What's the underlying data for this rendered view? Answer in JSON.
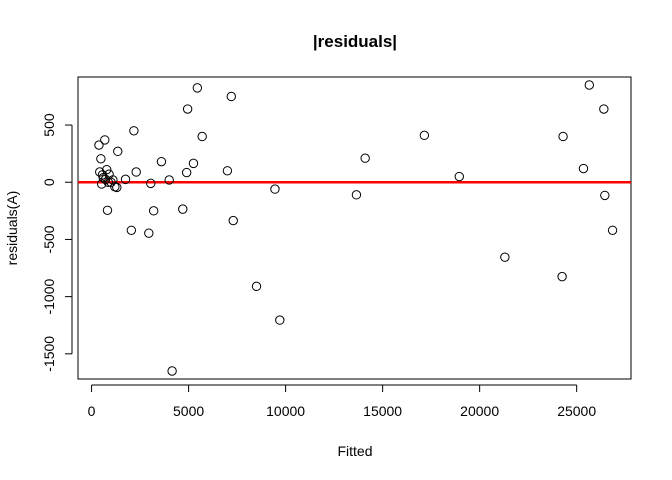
{
  "chart_data": {
    "type": "scatter",
    "title": "|residuals|",
    "xlabel": "Fitted",
    "ylabel": "residuals(A)",
    "xlim": [
      -700,
      27800
    ],
    "ylim": [
      -1720,
      920
    ],
    "xticks": [
      0,
      5000,
      10000,
      15000,
      20000,
      25000
    ],
    "yticks": [
      -1500,
      -1000,
      -500,
      0,
      500
    ],
    "xtick_labels": [
      "0",
      "5000",
      "10000",
      "15000",
      "20000",
      "25000"
    ],
    "ytick_labels": [
      "-1500",
      "-1000",
      "-500",
      "0",
      "500"
    ],
    "reference_line": {
      "y": 0,
      "color": "#ff0000"
    },
    "marker_color": "#000000",
    "grid": false,
    "points": [
      {
        "x": 380,
        "y": 325
      },
      {
        "x": 420,
        "y": 90
      },
      {
        "x": 480,
        "y": 205
      },
      {
        "x": 520,
        "y": -15
      },
      {
        "x": 560,
        "y": 65
      },
      {
        "x": 600,
        "y": 40
      },
      {
        "x": 680,
        "y": 370
      },
      {
        "x": 720,
        "y": 25
      },
      {
        "x": 780,
        "y": 110
      },
      {
        "x": 820,
        "y": -245
      },
      {
        "x": 860,
        "y": 0
      },
      {
        "x": 900,
        "y": 70
      },
      {
        "x": 1000,
        "y": 0
      },
      {
        "x": 1100,
        "y": 20
      },
      {
        "x": 1200,
        "y": -40
      },
      {
        "x": 1300,
        "y": -45
      },
      {
        "x": 1350,
        "y": 270
      },
      {
        "x": 1750,
        "y": 25
      },
      {
        "x": 2050,
        "y": -420
      },
      {
        "x": 2180,
        "y": 450
      },
      {
        "x": 2300,
        "y": 90
      },
      {
        "x": 2950,
        "y": -445
      },
      {
        "x": 3050,
        "y": -10
      },
      {
        "x": 3200,
        "y": -250
      },
      {
        "x": 3600,
        "y": 180
      },
      {
        "x": 4000,
        "y": 20
      },
      {
        "x": 4150,
        "y": -1650
      },
      {
        "x": 4700,
        "y": -235
      },
      {
        "x": 4900,
        "y": 85
      },
      {
        "x": 4950,
        "y": 640
      },
      {
        "x": 5250,
        "y": 165
      },
      {
        "x": 5450,
        "y": 825
      },
      {
        "x": 5700,
        "y": 400
      },
      {
        "x": 7000,
        "y": 100
      },
      {
        "x": 7200,
        "y": 750
      },
      {
        "x": 7300,
        "y": -335
      },
      {
        "x": 8500,
        "y": -910
      },
      {
        "x": 9450,
        "y": -60
      },
      {
        "x": 9700,
        "y": -1205
      },
      {
        "x": 13650,
        "y": -110
      },
      {
        "x": 14100,
        "y": 210
      },
      {
        "x": 17150,
        "y": 410
      },
      {
        "x": 18950,
        "y": 50
      },
      {
        "x": 21300,
        "y": -655
      },
      {
        "x": 24250,
        "y": -825
      },
      {
        "x": 24300,
        "y": 400
      },
      {
        "x": 25350,
        "y": 120
      },
      {
        "x": 25650,
        "y": 850
      },
      {
        "x": 26400,
        "y": 640
      },
      {
        "x": 26450,
        "y": -115
      },
      {
        "x": 26850,
        "y": -420
      }
    ]
  }
}
